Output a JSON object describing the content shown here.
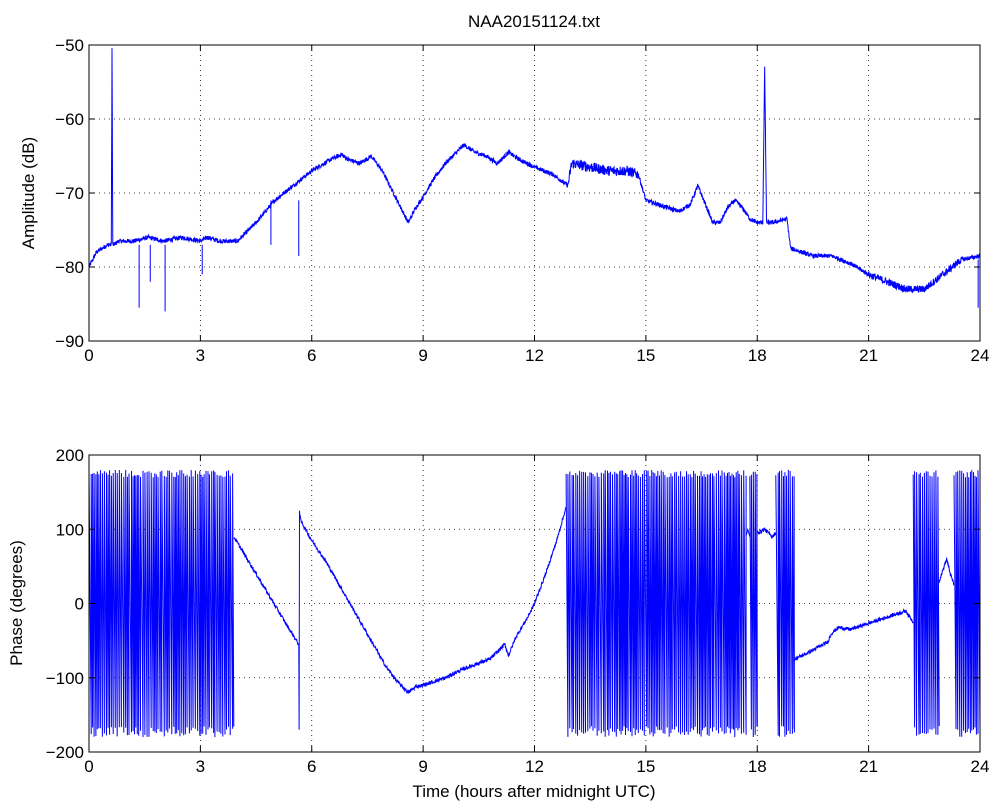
{
  "figure": {
    "title": "NAA20151124.txt"
  },
  "chart_data": [
    {
      "type": "line",
      "title": "NAA20151124.txt",
      "xlabel": "",
      "ylabel": "Amplitude (dB)",
      "xlim": [
        0,
        24
      ],
      "ylim": [
        -90,
        -50
      ],
      "xticks": [
        0,
        3,
        6,
        9,
        12,
        15,
        18,
        21,
        24
      ],
      "yticks": [
        -90,
        -80,
        -70,
        -60,
        -50
      ],
      "grid": true,
      "color": "#0000ff",
      "series": [
        {
          "x": [
            0,
            0.2,
            0.5,
            0.6,
            0.62,
            0.64,
            0.66,
            0.8,
            1.2,
            1.6,
            2.0,
            2.5,
            3.0,
            3.2,
            3.5,
            4.0,
            4.5,
            5.0,
            5.5,
            6.0,
            6.5,
            6.8,
            7.0,
            7.3,
            7.6,
            7.9,
            8.2,
            8.5,
            8.6,
            8.8,
            9.0,
            9.3,
            9.6,
            9.9,
            10.1,
            10.4,
            10.7,
            11.0,
            11.3,
            11.6,
            12.0,
            12.5,
            12.9,
            13.0,
            13.5,
            14.0,
            14.5,
            14.8,
            15.0,
            15.3,
            15.6,
            15.9,
            16.2,
            16.4,
            16.6,
            16.8,
            17.0,
            17.2,
            17.4,
            17.6,
            17.8,
            18.0,
            18.15,
            18.2,
            18.25,
            18.4,
            18.8,
            18.9,
            19.5,
            20.0,
            20.5,
            21.0,
            21.5,
            22.0,
            22.5,
            23.0,
            23.5,
            24.0
          ],
          "y": [
            -80,
            -78,
            -77,
            -77,
            -50.5,
            -77,
            -77,
            -76.5,
            -76.5,
            -76,
            -76.5,
            -76,
            -76.5,
            -76,
            -76.5,
            -76.5,
            -74,
            -71,
            -69,
            -67,
            -65.5,
            -64.8,
            -65.5,
            -66,
            -65,
            -67,
            -70,
            -73,
            -74,
            -72,
            -70.5,
            -68,
            -66,
            -64.5,
            -63.5,
            -64.5,
            -65,
            -66,
            -64.5,
            -65.5,
            -66.5,
            -67.5,
            -69,
            -66,
            -66.5,
            -67,
            -67,
            -67.5,
            -71,
            -71.5,
            -72,
            -72.5,
            -71.5,
            -69,
            -71.5,
            -74,
            -74,
            -72,
            -71,
            -72,
            -73.5,
            -74,
            -74,
            -53,
            -74,
            -74,
            -73.5,
            -77.5,
            -78.5,
            -78.5,
            -79.5,
            -81,
            -82,
            -83,
            -83,
            -81,
            -79,
            -78.5
          ]
        }
      ]
    },
    {
      "type": "line",
      "title": "",
      "xlabel": "Time (hours after midnight UTC)",
      "ylabel": "Phase (degrees)",
      "xlim": [
        0,
        24
      ],
      "ylim": [
        -200,
        200
      ],
      "xticks": [
        0,
        3,
        6,
        9,
        12,
        15,
        18,
        21,
        24
      ],
      "yticks": [
        -200,
        -100,
        0,
        100,
        200
      ],
      "grid": true,
      "color": "#0000ff",
      "wrapping_regions": [
        [
          0,
          3.9
        ],
        [
          12.85,
          17.7
        ],
        [
          17.8,
          18.0
        ],
        [
          18.5,
          19.0
        ],
        [
          22.2,
          22.9
        ],
        [
          23.3,
          24.0
        ]
      ],
      "series": [
        {
          "x": [
            3.9,
            4.2,
            4.5,
            4.8,
            5.1,
            5.4,
            5.65,
            5.66,
            5.67,
            5.68,
            5.7,
            6.0,
            6.4,
            6.8,
            7.2,
            7.6,
            8.0,
            8.3,
            8.6,
            8.8,
            9.0,
            9.3,
            9.6,
            10.0,
            10.4,
            10.8,
            11.0,
            11.2,
            11.3,
            11.5,
            11.8,
            12.0,
            12.3,
            12.6,
            12.85
          ],
          "y": [
            90,
            65,
            40,
            15,
            -10,
            -35,
            -55,
            -170,
            125,
            120,
            112,
            85,
            55,
            20,
            -15,
            -50,
            -85,
            -105,
            -120,
            -112,
            -110,
            -105,
            -100,
            -90,
            -82,
            -75,
            -65,
            -55,
            -70,
            -45,
            -20,
            0,
            40,
            85,
            130
          ]
        },
        {
          "x": [
            17.7,
            17.75,
            17.8
          ],
          "y": [
            90,
            100,
            90
          ]
        },
        {
          "x": [
            18.0,
            18.2,
            18.4,
            18.5
          ],
          "y": [
            95,
            100,
            90,
            95
          ]
        },
        {
          "x": [
            19.0,
            19.3,
            19.6,
            19.9,
            20.0,
            20.2,
            20.5,
            20.8,
            21.1,
            21.4,
            21.7,
            22.0,
            22.2
          ],
          "y": [
            -75,
            -68,
            -60,
            -52,
            -40,
            -32,
            -35,
            -30,
            -25,
            -20,
            -15,
            -10,
            -25
          ]
        },
        {
          "x": [
            22.9,
            23.0,
            23.1,
            23.2,
            23.3
          ],
          "y": [
            30,
            45,
            60,
            40,
            25
          ]
        }
      ]
    }
  ]
}
